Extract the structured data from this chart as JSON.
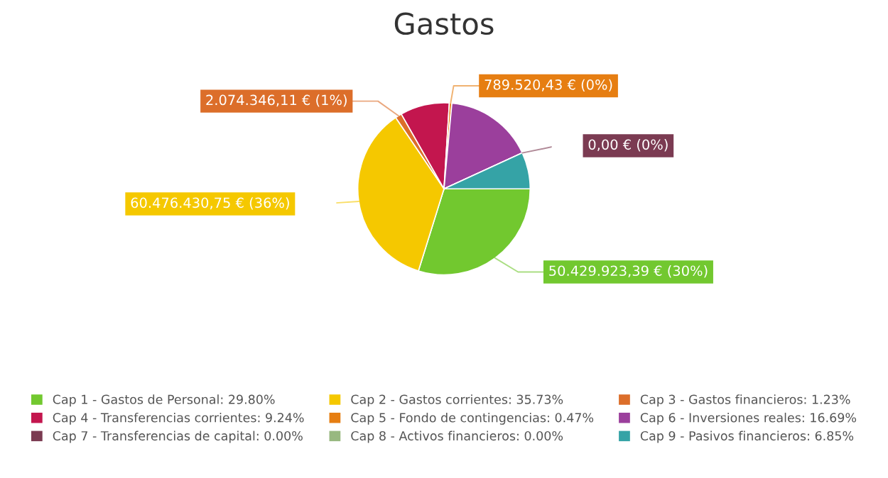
{
  "chart_data": {
    "type": "pie",
    "title": "Gastos",
    "categories": [
      "Cap 1 - Gastos de Personal: 29.80%",
      "Cap 2 - Gastos corrientes: 35.73%",
      "Cap 3 - Gastos financieros: 1.23%",
      "Cap 4 - Transferencias corrientes: 9.24%",
      "Cap 5 - Fondo de contingencias: 0.47%",
      "Cap 6 - Inversiones reales: 16.69%",
      "Cap 7 - Transferencias de capital: 0.00%",
      "Cap 8 - Activos financieros: 0.00%",
      "Cap 9 - Pasivos financieros: 6.85%"
    ],
    "values": [
      29.8,
      35.73,
      1.23,
      9.24,
      0.47,
      16.69,
      0.0,
      0.0,
      6.85
    ],
    "colors": [
      "#72c82f",
      "#f5c800",
      "#dc6e2a",
      "#c3164e",
      "#e67e12",
      "#9b3f9c",
      "#7b3b52",
      "#98b880",
      "#35a3a6"
    ],
    "value_labels": [
      "50.429.923,39 € (30%)",
      "60.476.430,75 € (36%)",
      "2.074.346,11 € (1%)",
      null,
      "789.520,43 € (0%)",
      null,
      "0,00 € (0%)",
      null,
      null
    ],
    "legend": "bottom"
  }
}
